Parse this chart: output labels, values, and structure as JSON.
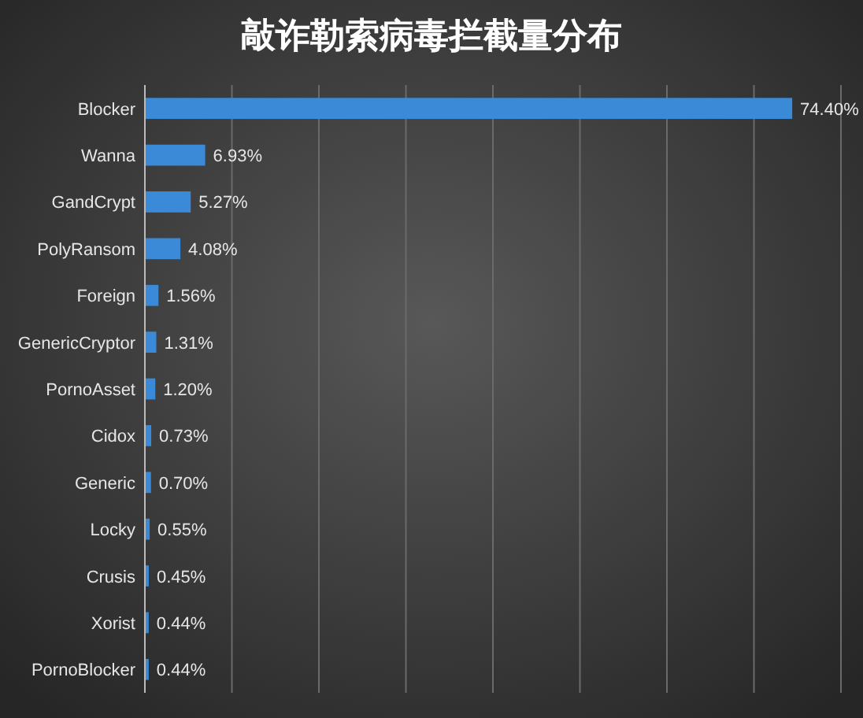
{
  "chart_data": {
    "type": "bar",
    "orientation": "horizontal",
    "title": "敲诈勒索病毒拦截量分布",
    "categories": [
      "Blocker",
      "Wanna",
      "GandCrypt",
      "PolyRansom",
      "Foreign",
      "GenericCryptor",
      "PornoAsset",
      "Cidox",
      "Generic",
      "Locky",
      "Crusis",
      "Xorist",
      "PornoBlocker"
    ],
    "values": [
      74.4,
      6.93,
      5.27,
      4.08,
      1.56,
      1.31,
      1.2,
      0.73,
      0.7,
      0.55,
      0.45,
      0.44,
      0.44
    ],
    "value_labels": [
      "74.40%",
      "6.93%",
      "5.27%",
      "4.08%",
      "1.56%",
      "1.31%",
      "1.20%",
      "0.73%",
      "0.70%",
      "0.55%",
      "0.45%",
      "0.44%",
      "0.44%"
    ],
    "color": "#3b8ad8",
    "xlim": [
      0,
      80
    ],
    "xticks": [
      {
        "value": 0,
        "label": null
      },
      {
        "value": 10,
        "label": null
      },
      {
        "value": 20,
        "label": null
      },
      {
        "value": 30,
        "label": null
      },
      {
        "value": 40,
        "label": null
      },
      {
        "value": 50,
        "label": null
      },
      {
        "value": 60,
        "label": null
      },
      {
        "value": 70,
        "label": null
      },
      {
        "value": 80,
        "label": null
      }
    ],
    "grid": "x",
    "tick_labels": "y"
  }
}
